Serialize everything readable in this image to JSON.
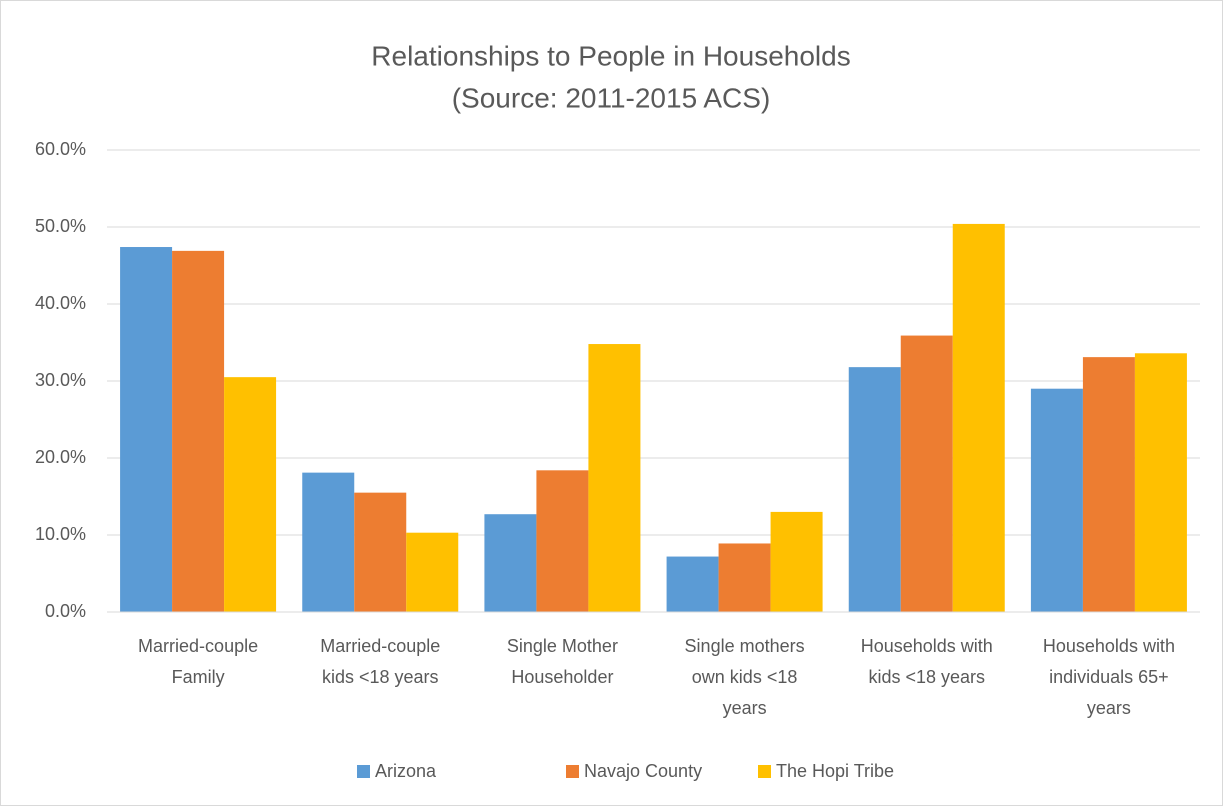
{
  "chart_data": {
    "type": "bar",
    "title": "Relationships to People in Households",
    "subtitle": "(Source: 2011-2015 ACS)",
    "categories": [
      "Married-couple Family",
      "Married-couple kids <18 years",
      "Single Mother Householder",
      "Single mothers own kids <18 years",
      "Households with kids <18 years",
      "Households with individuals 65+ years"
    ],
    "series": [
      {
        "name": "Arizona",
        "color": "#5b9bd5",
        "values": [
          47.4,
          18.1,
          12.7,
          7.2,
          31.8,
          29.0
        ]
      },
      {
        "name": "Navajo County",
        "color": "#ed7d31",
        "values": [
          46.9,
          15.5,
          18.4,
          8.9,
          35.9,
          33.1
        ]
      },
      {
        "name": "The Hopi  Tribe",
        "color": "#ffc000",
        "values": [
          30.5,
          10.3,
          34.8,
          13.0,
          50.4,
          33.6
        ]
      }
    ],
    "ylim": [
      0,
      60
    ],
    "yticks": [
      {
        "value": 0,
        "label": "0.0%"
      },
      {
        "value": 10,
        "label": "10.0%"
      },
      {
        "value": 20,
        "label": "20.0%"
      },
      {
        "value": 30,
        "label": "30.0%"
      },
      {
        "value": 40,
        "label": "40.0%"
      },
      {
        "value": 50,
        "label": "50.0%"
      },
      {
        "value": 60,
        "label": "60.0%"
      }
    ],
    "grid": true,
    "legend": "bottom"
  }
}
